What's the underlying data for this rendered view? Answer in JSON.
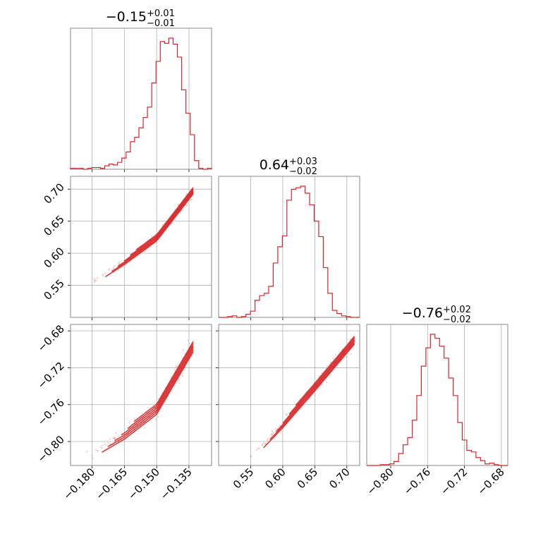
{
  "chart_data": {
    "type": "scatter",
    "kind": "corner",
    "parameters": [
      {
        "title_center": "−0.15",
        "title_plus": "+0.01",
        "title_minus": "−0.01",
        "range": [
          -0.19,
          -0.1245
        ],
        "ticks": [
          -0.18,
          -0.165,
          -0.15,
          -0.135
        ],
        "tick_labels": [
          "−0.180",
          "−0.165",
          "−0.150",
          "−0.135"
        ],
        "hist_counts": [
          1,
          1,
          1,
          0,
          1,
          2,
          2,
          1,
          4,
          6,
          5,
          8,
          13,
          20,
          32,
          37,
          48,
          60,
          72,
          100,
          125,
          148,
          146,
          152,
          145,
          130,
          92,
          65,
          40,
          10,
          1,
          0,
          1
        ]
      },
      {
        "title_center": "0.64",
        "title_plus": "+0.03",
        "title_minus": "−0.02",
        "range": [
          0.5,
          0.72
        ],
        "ticks": [
          0.55,
          0.6,
          0.65,
          0.7
        ],
        "tick_labels": [
          "0.55",
          "0.60",
          "0.65",
          "0.70"
        ],
        "hist_counts": [
          0,
          0,
          1,
          2,
          0,
          1,
          4,
          8,
          22,
          28,
          31,
          40,
          70,
          91,
          105,
          151,
          165,
          167,
          169,
          160,
          145,
          124,
          104,
          64,
          31,
          9,
          5,
          2,
          1,
          0,
          0
        ]
      },
      {
        "title_center": "−0.76",
        "title_plus": "+0.02",
        "title_minus": "−0.02",
        "range": [
          -0.826,
          -0.673
        ],
        "ticks": [
          -0.8,
          -0.76,
          -0.72,
          -0.68
        ],
        "tick_labels": [
          "−0.80",
          "−0.76",
          "−0.72",
          "−0.68"
        ],
        "hist_counts": [
          0,
          0,
          0,
          1,
          1,
          2,
          5,
          15,
          26,
          35,
          57,
          88,
          125,
          148,
          165,
          160,
          150,
          135,
          110,
          88,
          54,
          32,
          19,
          17,
          10,
          6,
          2,
          3,
          1,
          0,
          0
        ]
      }
    ],
    "pair_relations": {
      "y1_vs_x0": [
        [
          -0.18,
          0.555
        ],
        [
          -0.165,
          0.587
        ],
        [
          -0.15,
          0.624
        ],
        [
          -0.135,
          0.689
        ]
      ],
      "y2_vs_x0": [
        [
          -0.182,
          -0.815
        ],
        [
          -0.165,
          -0.792
        ],
        [
          -0.15,
          -0.765
        ],
        [
          -0.135,
          -0.705
        ]
      ],
      "y2_vs_x1": [
        [
          0.55,
          -0.817
        ],
        [
          0.6,
          -0.781
        ],
        [
          0.65,
          -0.741
        ],
        [
          0.712,
          -0.69
        ]
      ]
    },
    "grid": true,
    "color": "#d62728"
  }
}
